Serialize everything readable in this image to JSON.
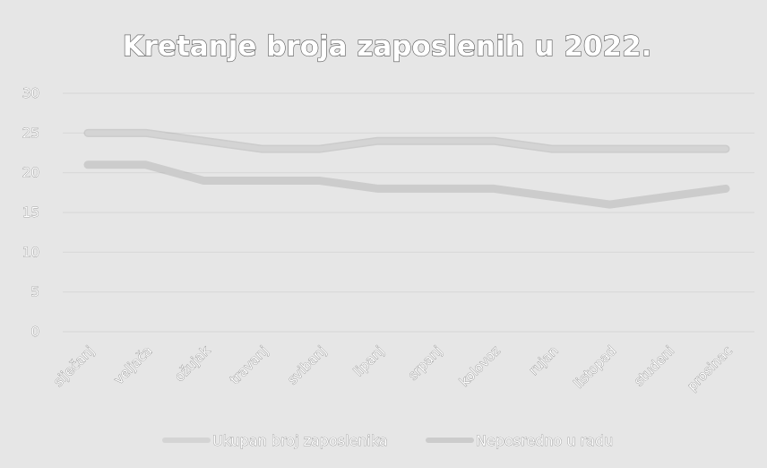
{
  "chart_data": {
    "type": "line",
    "title": "Kretanje broja zaposlenih u 2022.",
    "categories": [
      "siječanj",
      "veljača",
      "ožujak",
      "travanj",
      "svibanj",
      "lipanj",
      "srpanj",
      "kolovoz",
      "rujan",
      "listopad",
      "studeni",
      "prosinac"
    ],
    "yticks": [
      "0",
      "5",
      "10",
      "15",
      "20",
      "25",
      "30"
    ],
    "ylim": [
      0,
      30
    ],
    "grid": true,
    "legend_position": "bottom",
    "series": [
      {
        "name": "Ukupan broj zaposlenika",
        "color": "#d4d4d4",
        "values": [
          25,
          25,
          24,
          23,
          23,
          24,
          24,
          24,
          23,
          23,
          23,
          23
        ]
      },
      {
        "name": "Neposredno u radu",
        "color": "#cccccc",
        "values": [
          21,
          21,
          19,
          19,
          19,
          18,
          18,
          18,
          17,
          16,
          17,
          18
        ]
      }
    ]
  }
}
